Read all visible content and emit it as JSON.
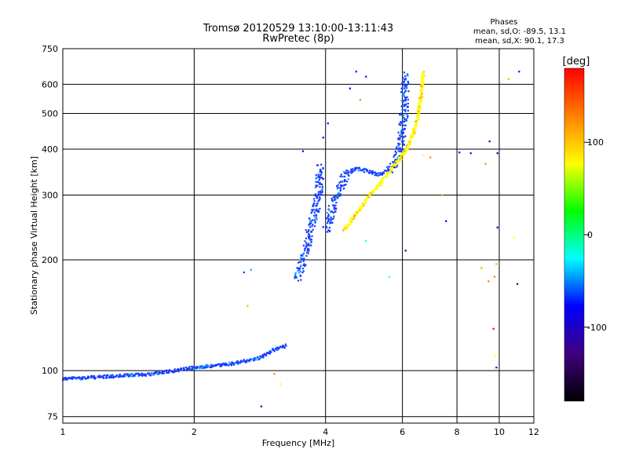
{
  "chart_data": {
    "type": "scatter",
    "title": "Tromsø 20120529 13:10:00-13:11:43",
    "subtitle": "RwPretec (8p)",
    "xlabel": "Frequency [MHz]",
    "ylabel": "Stationary phase Virtual Height [km]",
    "x_scale": "log",
    "y_scale": "log",
    "xlim": [
      1,
      12
    ],
    "ylim": [
      72,
      750
    ],
    "x_ticks": [
      1,
      2,
      4,
      6,
      8,
      10,
      12
    ],
    "y_ticks": [
      75,
      100,
      200,
      300,
      400,
      500,
      600,
      750
    ],
    "grid": true,
    "phases_box": {
      "heading": "Phases",
      "line_o": "mean, sd,O: -89.5, 13.1",
      "line_x": "mean, sd,X: 90.1, 17.3"
    },
    "colorbar": {
      "label": "[deg]",
      "range": [
        -180,
        180
      ],
      "ticks": [
        100,
        0,
        -100
      ],
      "colors": [
        "#ff0000",
        "#ff8000",
        "#ffff00",
        "#00ff00",
        "#00ffff",
        "#0000ff",
        "#400080",
        "#000000"
      ]
    },
    "series": [
      {
        "name": "O",
        "color": "#1a3cff",
        "segments": [
          [
            [
              1.0,
              95
            ],
            [
              1.3,
              96.5
            ],
            [
              1.6,
              98
            ],
            [
              1.9,
              101
            ],
            [
              2.2,
              103
            ],
            [
              2.5,
              105
            ],
            [
              2.8,
              108
            ],
            [
              3.0,
              113
            ],
            [
              3.25,
              117
            ]
          ],
          [
            [
              3.45,
              178
            ],
            [
              3.55,
              200
            ],
            [
              3.65,
              225
            ],
            [
              3.75,
              260
            ],
            [
              3.85,
              300
            ],
            [
              3.9,
              360
            ]
          ],
          [
            [
              4.0,
              240
            ],
            [
              4.1,
              260
            ],
            [
              4.2,
              290
            ],
            [
              4.35,
              320
            ],
            [
              4.5,
              345
            ],
            [
              4.7,
              355
            ],
            [
              5.0,
              348
            ],
            [
              5.3,
              342
            ],
            [
              5.6,
              352
            ],
            [
              5.8,
              375
            ],
            [
              5.95,
              420
            ],
            [
              6.05,
              500
            ],
            [
              6.1,
              640
            ]
          ]
        ]
      },
      {
        "name": "X",
        "color": "#ffff00",
        "segments": [
          [
            [
              4.4,
              240
            ],
            [
              4.6,
              258
            ],
            [
              4.8,
              275
            ],
            [
              5.0,
              295
            ],
            [
              5.3,
              320
            ],
            [
              5.6,
              348
            ],
            [
              5.9,
              375
            ],
            [
              6.2,
              410
            ],
            [
              6.45,
              470
            ],
            [
              6.6,
              540
            ],
            [
              6.7,
              650
            ]
          ]
        ]
      }
    ],
    "scatter_points": [
      {
        "x": 2.6,
        "y": 185,
        "color": "#0033ff"
      },
      {
        "x": 2.7,
        "y": 188,
        "color": "#00aaff"
      },
      {
        "x": 2.65,
        "y": 150,
        "color": "#ffaa00"
      },
      {
        "x": 2.85,
        "y": 80,
        "color": "#0000aa"
      },
      {
        "x": 3.05,
        "y": 98,
        "color": "#ff8000"
      },
      {
        "x": 3.15,
        "y": 92,
        "color": "#ffff00"
      },
      {
        "x": 4.55,
        "y": 585,
        "color": "#0000ff"
      },
      {
        "x": 4.7,
        "y": 650,
        "color": "#0000ff"
      },
      {
        "x": 4.95,
        "y": 630,
        "color": "#0000ff"
      },
      {
        "x": 4.8,
        "y": 545,
        "color": "#ff8000"
      },
      {
        "x": 3.55,
        "y": 395,
        "color": "#0000ff"
      },
      {
        "x": 3.95,
        "y": 430,
        "color": "#0000ff"
      },
      {
        "x": 4.05,
        "y": 470,
        "color": "#0000ff"
      },
      {
        "x": 5.6,
        "y": 180,
        "color": "#00ffff"
      },
      {
        "x": 4.95,
        "y": 225,
        "color": "#00ffff"
      },
      {
        "x": 6.1,
        "y": 212,
        "color": "#0000aa"
      },
      {
        "x": 6.7,
        "y": 385,
        "color": "#ffff00"
      },
      {
        "x": 6.95,
        "y": 380,
        "color": "#ff8000"
      },
      {
        "x": 7.4,
        "y": 300,
        "color": "#ffaa00"
      },
      {
        "x": 7.55,
        "y": 255,
        "color": "#0000ff"
      },
      {
        "x": 8.1,
        "y": 392,
        "color": "#0000ff"
      },
      {
        "x": 8.6,
        "y": 390,
        "color": "#0000ff"
      },
      {
        "x": 9.3,
        "y": 365,
        "color": "#ff8000"
      },
      {
        "x": 9.5,
        "y": 420,
        "color": "#0000aa"
      },
      {
        "x": 9.9,
        "y": 390,
        "color": "#0000aa"
      },
      {
        "x": 9.9,
        "y": 245,
        "color": "#0000aa"
      },
      {
        "x": 9.85,
        "y": 195,
        "color": "#ffaa00"
      },
      {
        "x": 9.75,
        "y": 180,
        "color": "#ff8000"
      },
      {
        "x": 9.45,
        "y": 175,
        "color": "#ff8000"
      },
      {
        "x": 9.7,
        "y": 130,
        "color": "#ff0000"
      },
      {
        "x": 9.8,
        "y": 110,
        "color": "#ffff00"
      },
      {
        "x": 9.85,
        "y": 102,
        "color": "#0000aa"
      },
      {
        "x": 10.5,
        "y": 620,
        "color": "#ffaa00"
      },
      {
        "x": 11.1,
        "y": 650,
        "color": "#0000ff"
      },
      {
        "x": 10.8,
        "y": 230,
        "color": "#ffff00"
      },
      {
        "x": 11.0,
        "y": 172,
        "color": "#400080"
      },
      {
        "x": 9.1,
        "y": 190,
        "color": "#ffaa00"
      }
    ]
  }
}
